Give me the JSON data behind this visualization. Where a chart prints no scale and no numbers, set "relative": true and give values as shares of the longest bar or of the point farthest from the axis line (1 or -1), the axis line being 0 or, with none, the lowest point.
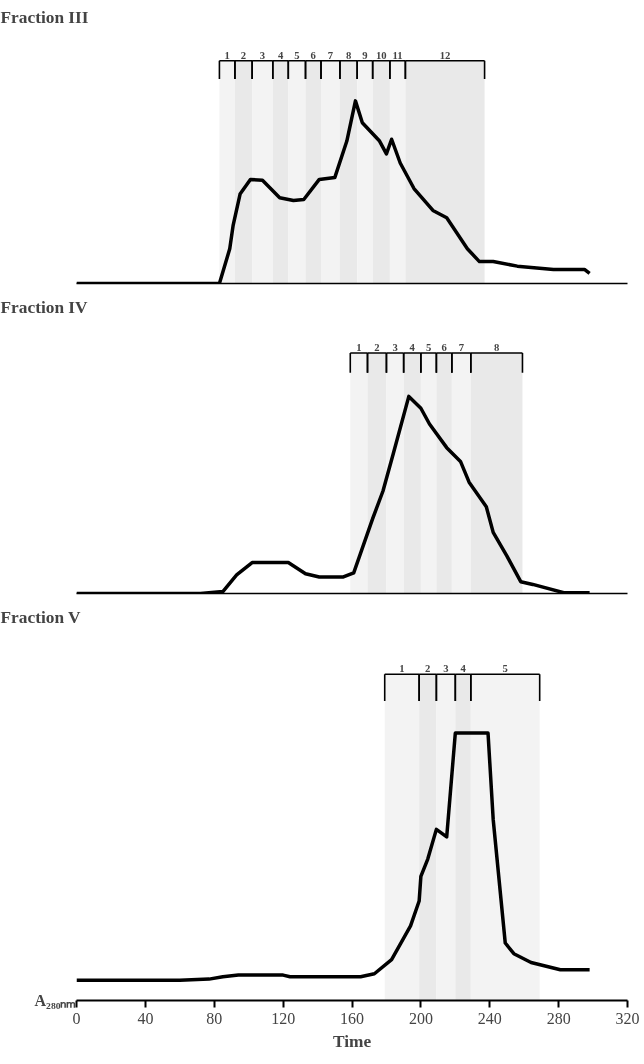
{
  "chart_data": [
    {
      "type": "line",
      "title": "Fraction III",
      "relative": true,
      "xlim": [
        0,
        320
      ],
      "xticks": [
        0,
        40,
        80,
        120,
        160,
        200,
        240,
        280,
        320
      ],
      "tick_labels": false,
      "x": [
        0,
        83,
        89,
        91,
        95,
        101,
        108,
        118,
        126,
        132,
        141,
        150,
        157,
        162,
        166,
        176,
        180,
        183,
        188,
        196,
        207,
        215,
        227,
        234,
        242,
        256,
        277,
        295,
        298
      ],
      "series": [
        {
          "color": "#000000",
          "values": [
            0,
            0,
            0.19,
            0.32,
            0.49,
            0.57,
            0.565,
            0.47,
            0.455,
            0.46,
            0.57,
            0.58,
            0.78,
            1.0,
            0.88,
            0.78,
            0.71,
            0.79,
            0.66,
            0.52,
            0.4,
            0.36,
            0.19,
            0.12,
            0.12,
            0.095,
            0.077,
            0.077,
            0.055
          ]
        }
      ],
      "bands": [
        {
          "axis": "x",
          "from": 83,
          "to": 92,
          "label": "1"
        },
        {
          "axis": "x",
          "from": 92,
          "to": 102,
          "label": "2"
        },
        {
          "axis": "x",
          "from": 102,
          "to": 114,
          "label": "3"
        },
        {
          "axis": "x",
          "from": 114,
          "to": 123,
          "label": "4"
        },
        {
          "axis": "x",
          "from": 123,
          "to": 133,
          "label": "5"
        },
        {
          "axis": "x",
          "from": 133,
          "to": 142,
          "label": "6"
        },
        {
          "axis": "x",
          "from": 142,
          "to": 153,
          "label": "7"
        },
        {
          "axis": "x",
          "from": 153,
          "to": 163,
          "label": "8"
        },
        {
          "axis": "x",
          "from": 163,
          "to": 172,
          "label": "9"
        },
        {
          "axis": "x",
          "from": 172,
          "to": 182,
          "label": "10"
        },
        {
          "axis": "x",
          "from": 182,
          "to": 191,
          "label": "11"
        },
        {
          "axis": "x",
          "from": 191,
          "to": 237,
          "label": "12"
        }
      ]
    },
    {
      "type": "line",
      "title": "Fraction IV",
      "relative": true,
      "xlim": [
        0,
        320
      ],
      "xticks": [
        0,
        40,
        80,
        120,
        160,
        200,
        240,
        280,
        320
      ],
      "tick_labels": false,
      "x": [
        0,
        72,
        85,
        93,
        102,
        123,
        133,
        141,
        155,
        161,
        172,
        178,
        184,
        193,
        200,
        205,
        215,
        223,
        228,
        238,
        242,
        250,
        258,
        265,
        283,
        298
      ],
      "series": [
        {
          "color": "#000000",
          "values": [
            0,
            0,
            0.01,
            0.094,
            0.157,
            0.157,
            0.1,
            0.084,
            0.084,
            0.105,
            0.38,
            0.52,
            0.71,
            1.0,
            0.94,
            0.86,
            0.74,
            0.67,
            0.565,
            0.44,
            0.31,
            0.19,
            0.06,
            0.046,
            0.004,
            0.004
          ]
        }
      ],
      "bands": [
        {
          "axis": "x",
          "from": 159,
          "to": 169,
          "label": "1"
        },
        {
          "axis": "x",
          "from": 169,
          "to": 180,
          "label": "2"
        },
        {
          "axis": "x",
          "from": 180,
          "to": 190,
          "label": "3"
        },
        {
          "axis": "x",
          "from": 190,
          "to": 200,
          "label": "4"
        },
        {
          "axis": "x",
          "from": 200,
          "to": 209,
          "label": "5"
        },
        {
          "axis": "x",
          "from": 209,
          "to": 218,
          "label": "6"
        },
        {
          "axis": "x",
          "from": 218,
          "to": 229,
          "label": "7"
        },
        {
          "axis": "x",
          "from": 229,
          "to": 259,
          "label": "8"
        }
      ]
    },
    {
      "type": "line",
      "title": "Fraction V",
      "relative": true,
      "xlim": [
        0,
        320
      ],
      "xticks": [
        0,
        40,
        80,
        120,
        160,
        200,
        240,
        280,
        320
      ],
      "tick_labels": "x",
      "xlabel": "Time",
      "ylabel": "A₂₈₀ₙₘ",
      "x": [
        0,
        60,
        77,
        85,
        94,
        120,
        124,
        165,
        173,
        183,
        194,
        199,
        200,
        204,
        209,
        215,
        220,
        239,
        242,
        249,
        254,
        264,
        281,
        298
      ],
      "series": [
        {
          "color": "#000000",
          "values": [
            0.076,
            0.076,
            0.08,
            0.089,
            0.095,
            0.095,
            0.089,
            0.089,
            0.1,
            0.153,
            0.279,
            0.372,
            0.464,
            0.529,
            0.64,
            0.612,
            1.0,
            1.0,
            0.677,
            0.215,
            0.175,
            0.142,
            0.115,
            0.115
          ]
        }
      ],
      "bands": [
        {
          "axis": "x",
          "from": 179,
          "to": 199,
          "label": "1"
        },
        {
          "axis": "x",
          "from": 199,
          "to": 209,
          "label": "2"
        },
        {
          "axis": "x",
          "from": 209,
          "to": 220,
          "label": "3"
        },
        {
          "axis": "x",
          "from": 220,
          "to": 229,
          "label": "4"
        },
        {
          "axis": "x",
          "from": 229,
          "to": 269,
          "label": "5"
        }
      ]
    }
  ]
}
